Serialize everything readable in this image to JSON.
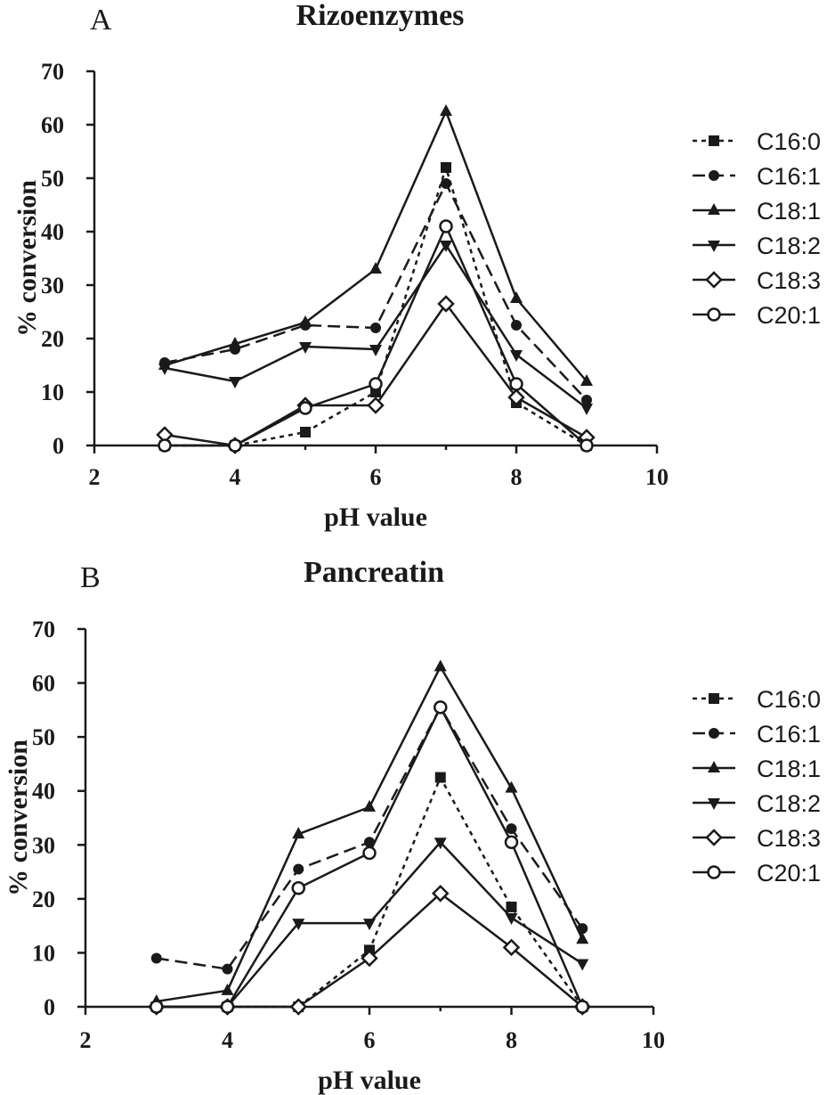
{
  "chart_data": [
    {
      "type": "line",
      "panel_label": "A",
      "title": "Rizoenzymes",
      "xlabel": "pH value",
      "ylabel": "% conversion",
      "xlim": [
        2,
        10
      ],
      "ylim": [
        0,
        70
      ],
      "xticks": [
        "2",
        "4",
        "6",
        "8",
        "10"
      ],
      "yticks": [
        "0",
        "10",
        "20",
        "30",
        "40",
        "50",
        "60",
        "70"
      ],
      "legend_position": "right",
      "x": [
        3,
        4,
        5,
        6,
        7,
        8,
        9
      ],
      "series": [
        {
          "name": "C16:0",
          "marker": "square",
          "dash": "dotted",
          "values": [
            0,
            0,
            2.5,
            10,
            52,
            8,
            0
          ]
        },
        {
          "name": "C16:1",
          "marker": "circle",
          "dash": "dashed",
          "values": [
            15.5,
            18,
            22.5,
            22,
            49,
            22.5,
            8.5
          ]
        },
        {
          "name": "C18:1",
          "marker": "triangle-up",
          "dash": "solid",
          "values": [
            15,
            19,
            23,
            33,
            62.5,
            27.5,
            12
          ]
        },
        {
          "name": "C18:2",
          "marker": "triangle-down",
          "dash": "solid",
          "values": [
            14.5,
            12,
            18.5,
            18,
            37.5,
            17,
            7
          ]
        },
        {
          "name": "C18:3",
          "marker": "diamond-open",
          "dash": "solid",
          "values": [
            2,
            0,
            7.5,
            7.5,
            26.5,
            9,
            1.5
          ]
        },
        {
          "name": "C20:1",
          "marker": "circle-open",
          "dash": "solid",
          "values": [
            0,
            0,
            7,
            11.5,
            41,
            11.5,
            0
          ]
        }
      ]
    },
    {
      "type": "line",
      "panel_label": "B",
      "title": "Pancreatin",
      "xlabel": "pH value",
      "ylabel": "% conversion",
      "xlim": [
        2,
        10
      ],
      "ylim": [
        0,
        70
      ],
      "xticks": [
        "2",
        "4",
        "6",
        "8",
        "10"
      ],
      "yticks": [
        "0",
        "10",
        "20",
        "30",
        "40",
        "50",
        "60",
        "70"
      ],
      "legend_position": "right",
      "x": [
        3,
        4,
        5,
        6,
        7,
        8,
        9
      ],
      "series": [
        {
          "name": "C16:0",
          "marker": "square",
          "dash": "dotted",
          "values": [
            0,
            0,
            0,
            10.5,
            42.5,
            18.5,
            0
          ]
        },
        {
          "name": "C16:1",
          "marker": "circle",
          "dash": "dashed",
          "values": [
            9,
            7,
            25.5,
            30.5,
            55.5,
            33,
            14.5
          ]
        },
        {
          "name": "C18:1",
          "marker": "triangle-up",
          "dash": "solid",
          "values": [
            1,
            3,
            32,
            37,
            63,
            40.5,
            12.5
          ]
        },
        {
          "name": "C18:2",
          "marker": "triangle-down",
          "dash": "solid",
          "values": [
            0,
            0,
            15.5,
            15.5,
            30.5,
            16.5,
            8
          ]
        },
        {
          "name": "C18:3",
          "marker": "diamond-open",
          "dash": "solid",
          "values": [
            0,
            0,
            0,
            9,
            21,
            11,
            0
          ]
        },
        {
          "name": "C20:1",
          "marker": "circle-open",
          "dash": "solid",
          "values": [
            0,
            0,
            22,
            28.5,
            55.5,
            30.5,
            0
          ]
        }
      ]
    }
  ]
}
